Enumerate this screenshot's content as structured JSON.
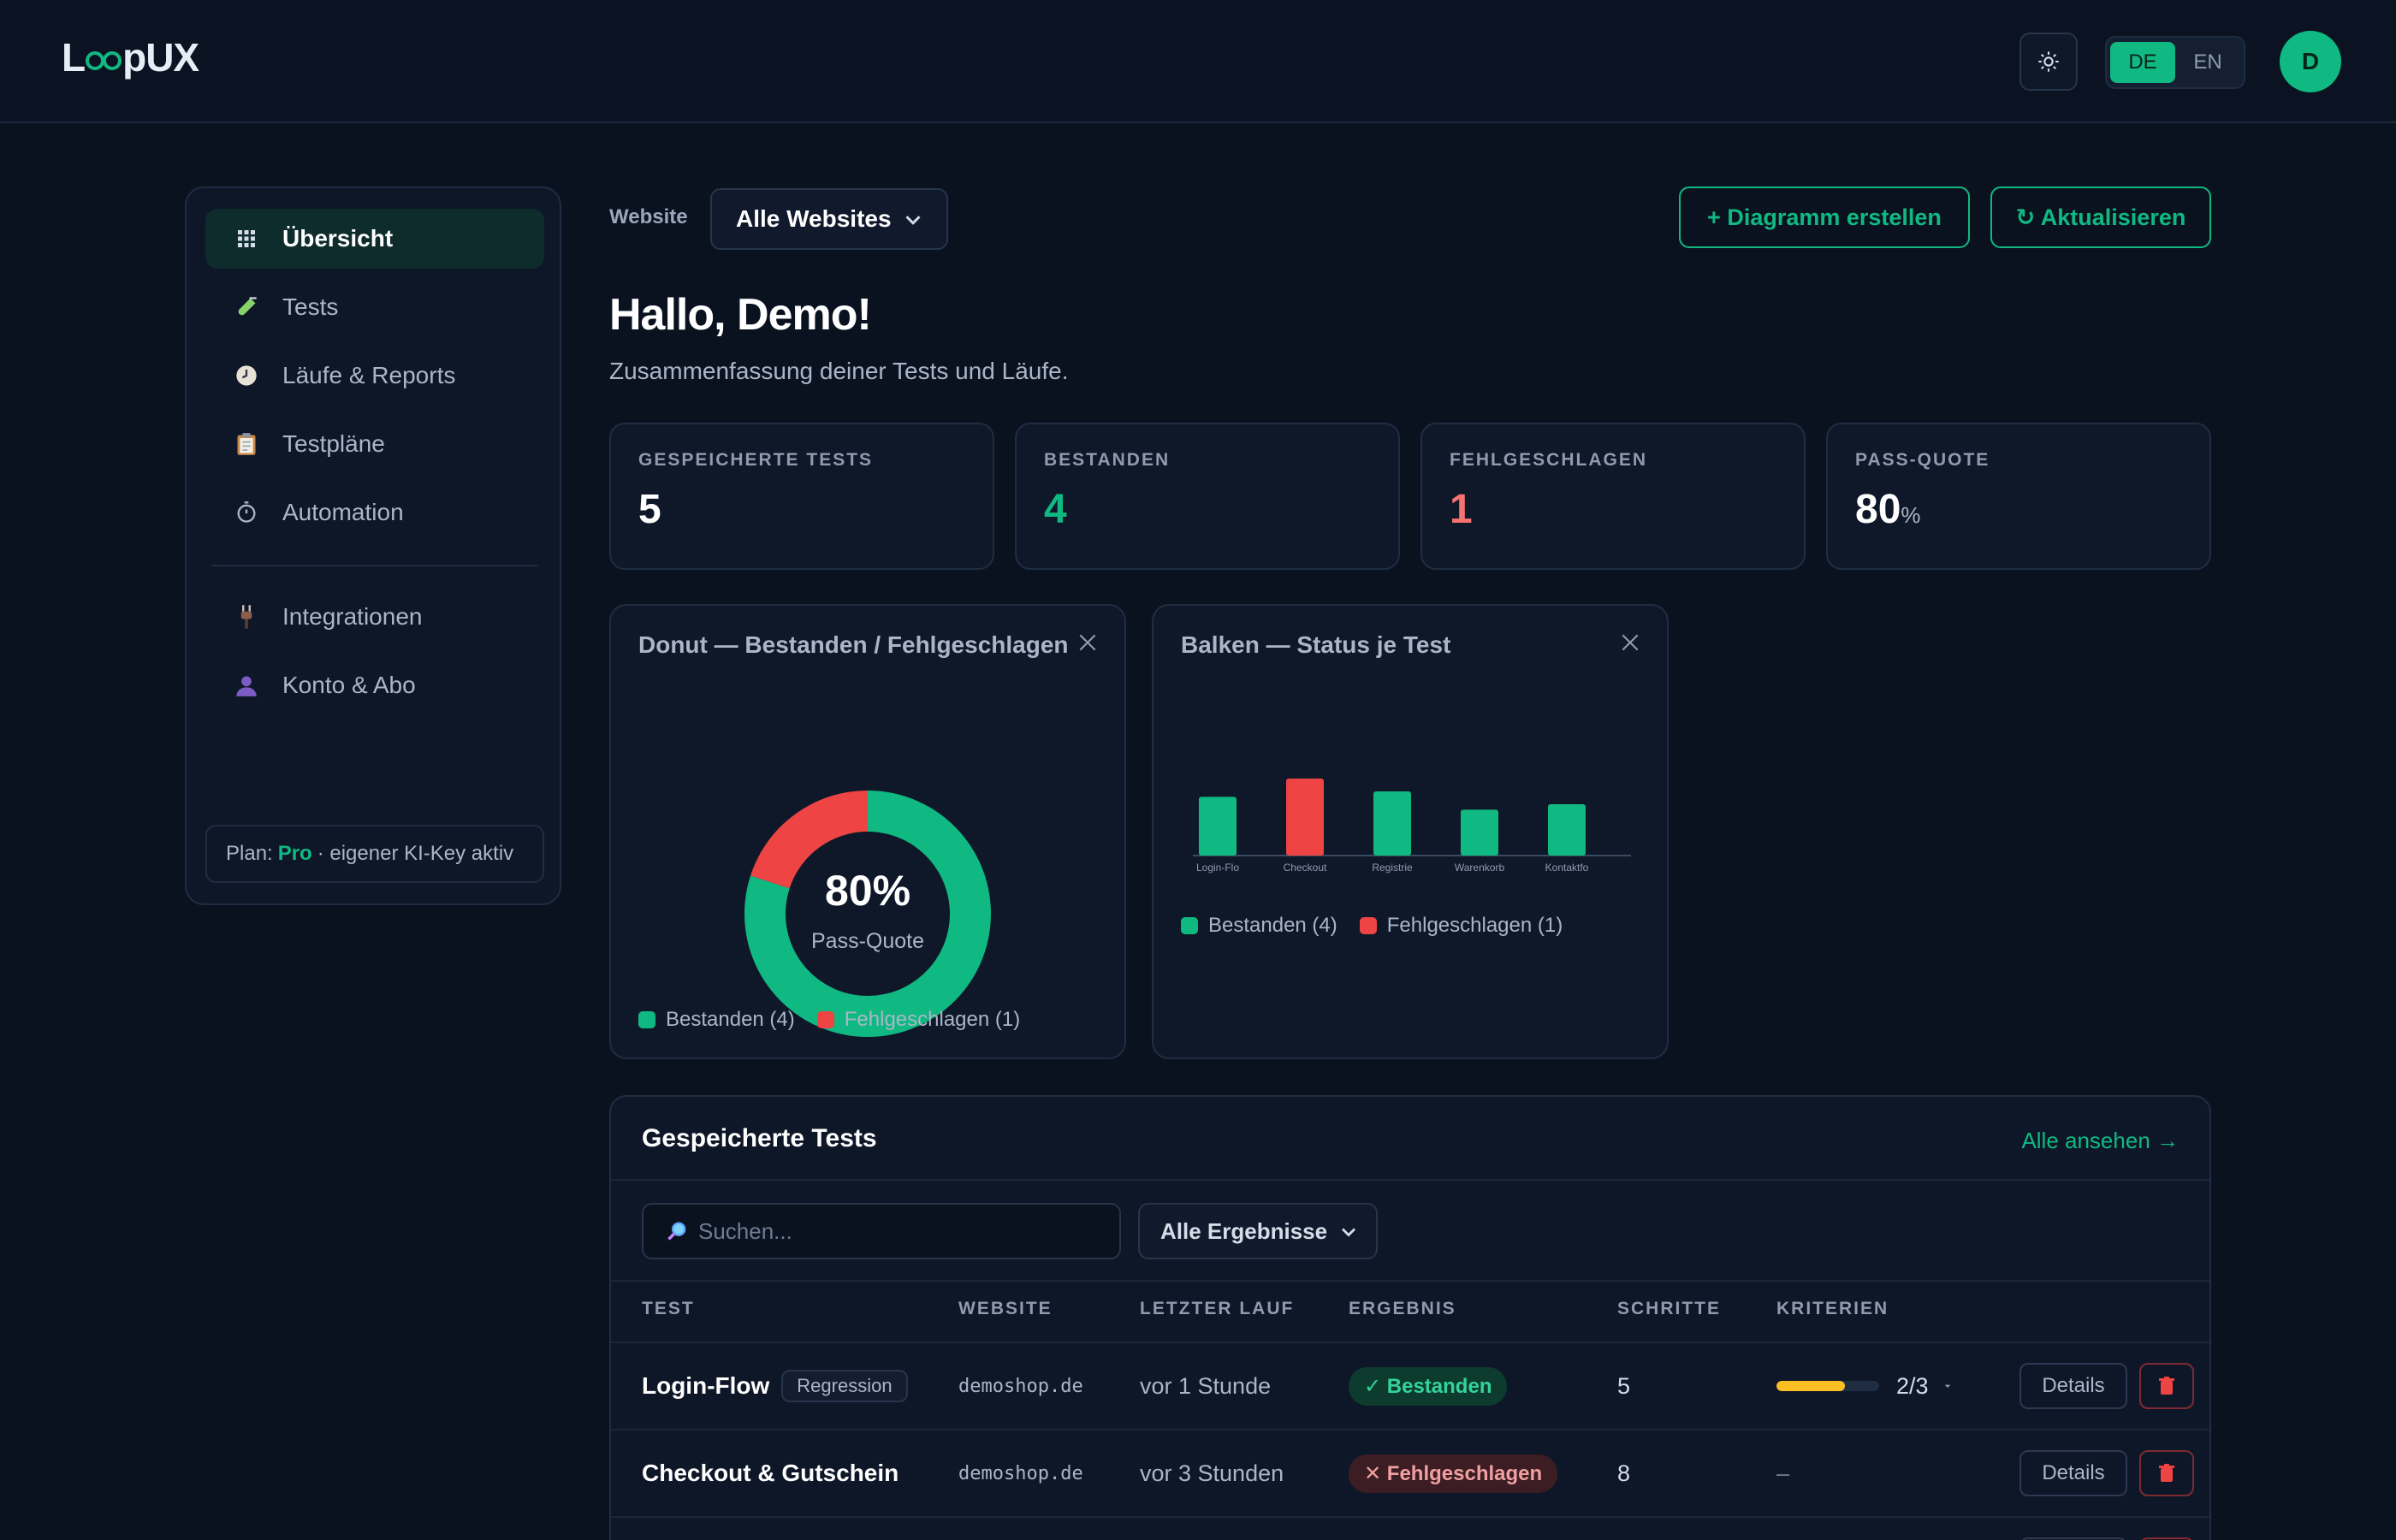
{
  "app": {
    "logo_prefix": "L",
    "logo_suffix": "pUX"
  },
  "header": {
    "lang": [
      "DE",
      "EN"
    ],
    "active_lang": "DE",
    "avatar_initial": "D"
  },
  "sidebar": {
    "items": [
      {
        "label": "Übersicht",
        "icon": "grid-icon"
      },
      {
        "label": "Tests",
        "icon": "test-tube-icon"
      },
      {
        "label": "Läufe & Reports",
        "icon": "clock-icon"
      },
      {
        "label": "Testpläne",
        "icon": "clipboard-icon"
      },
      {
        "label": "Automation",
        "icon": "stopwatch-icon"
      },
      {
        "label": "Integrationen",
        "icon": "plug-icon"
      },
      {
        "label": "Konto & Abo",
        "icon": "user-icon"
      }
    ],
    "plan_prefix": "Plan:",
    "plan_name": "Pro",
    "plan_suffix": "· eigener KI-Key aktiv"
  },
  "toolbar": {
    "website_label": "Website",
    "website_value": "Alle Websites",
    "create_chart": "+ Diagramm erstellen",
    "refresh": "↻ Aktualisieren"
  },
  "greeting": {
    "title": "Hallo, Demo!",
    "subtitle": "Zusammenfassung deiner Tests und Läufe."
  },
  "stats": [
    {
      "label": "GESPEICHERTE TESTS",
      "value": "5"
    },
    {
      "label": "BESTANDEN",
      "value": "4"
    },
    {
      "label": "FEHLGESCHLAGEN",
      "value": "1"
    },
    {
      "label": "PASS-QUOTE",
      "value": "80",
      "unit": "%"
    }
  ],
  "colors": {
    "accent": "#10b981",
    "fail": "#ef4444",
    "warning": "#fbbf24"
  },
  "chart_data": [
    {
      "type": "pie",
      "title": "Donut — Bestanden / Fehlgeschlagen",
      "center_value": "80%",
      "center_label": "Pass-Quote",
      "categories": [
        "Bestanden",
        "Fehlgeschlagen"
      ],
      "values": [
        4,
        1
      ],
      "colors": [
        "#10b981",
        "#ef4444"
      ],
      "legend": [
        "Bestanden (4)",
        "Fehlgeschlagen (1)"
      ]
    },
    {
      "type": "bar",
      "title": "Balken — Status je Test",
      "categories": [
        "Login-Flo",
        "Checkout",
        "Registrie",
        "Warenkorb",
        "Kontaktfo"
      ],
      "values": [
        3.2,
        4.2,
        3.5,
        2.5,
        2.8
      ],
      "status": [
        "pass",
        "fail",
        "pass",
        "pass",
        "pass"
      ],
      "colors": {
        "pass": "#10b981",
        "fail": "#ef4444"
      },
      "legend": [
        "Bestanden (4)",
        "Fehlgeschlagen (1)"
      ]
    }
  ],
  "table": {
    "title": "Gespeicherte Tests",
    "view_all": "Alle ansehen →",
    "search_placeholder": "Suchen...",
    "filter": "Alle Ergebnisse",
    "columns": [
      "TEST",
      "WEBSITE",
      "LETZTER LAUF",
      "ERGEBNIS",
      "SCHRITTE",
      "KRITERIEN"
    ],
    "rows": [
      {
        "name": "Login-Flow",
        "tag": "Regression",
        "website": "demoshop.de",
        "last_run": "vor 1 Stunde",
        "result": "✓ Bestanden",
        "result_type": "ok",
        "steps": "5",
        "criteria": "2/3",
        "criteria_fraction": 0.67,
        "details": "Details"
      },
      {
        "name": "Checkout & Gutschein",
        "tag": "",
        "website": "demoshop.de",
        "last_run": "vor 3 Stunden",
        "result": "✕ Fehlgeschlagen",
        "result_type": "fail",
        "steps": "8",
        "criteria": "–",
        "details": "Details"
      }
    ]
  }
}
